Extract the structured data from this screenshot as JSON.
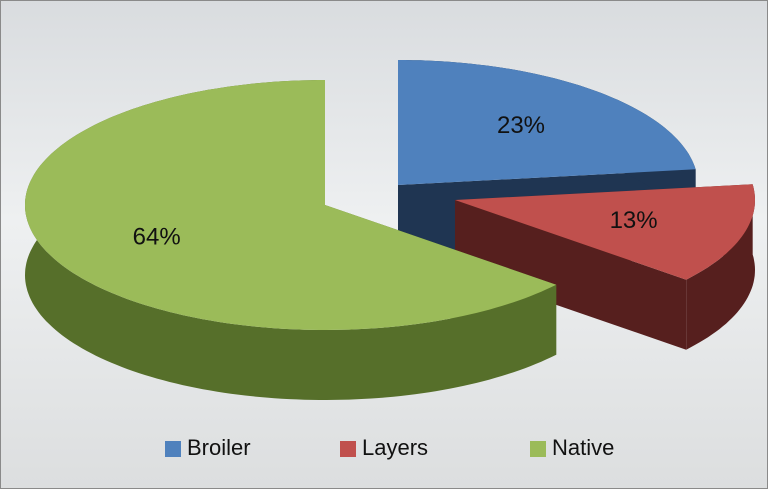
{
  "chart_data": {
    "type": "pie",
    "categories": [
      "Broiler",
      "Layers",
      "Native"
    ],
    "values": [
      23,
      13,
      64
    ],
    "value_labels": [
      "23%",
      "13%",
      "64%"
    ],
    "colors": [
      "#4f81bd",
      "#c0504d",
      "#9bbb59"
    ],
    "side_colors": [
      "#1f3552",
      "#561f1e",
      "#566f2a"
    ],
    "legend": "bottom"
  }
}
